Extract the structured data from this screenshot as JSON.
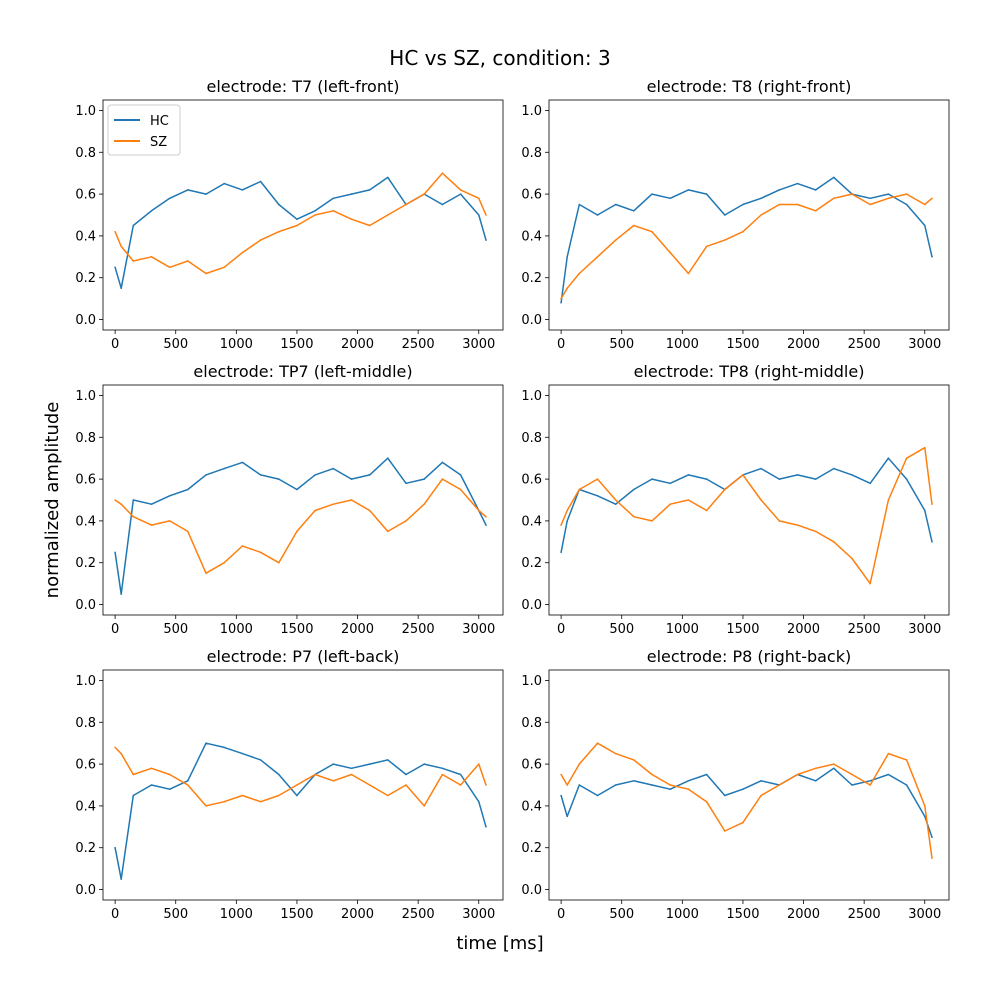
{
  "figure": {
    "title": "HC vs SZ, condition: 3",
    "xlabel": "time [ms]",
    "ylabel": "normalized amplitude",
    "legend": [
      "HC",
      "SZ"
    ],
    "colors": {
      "HC": "#1f77b4",
      "SZ": "#ff7f0e"
    }
  },
  "chart_data": [
    {
      "type": "line",
      "title": "electrode: T7 (left-front)",
      "xlim": [
        -100,
        3200
      ],
      "ylim": [
        -0.05,
        1.05
      ],
      "xticks": [
        0,
        500,
        1000,
        1500,
        2000,
        2500,
        3000
      ],
      "yticks": [
        0.0,
        0.2,
        0.4,
        0.6,
        0.8,
        1.0
      ],
      "legend_position": "upper left",
      "series": [
        {
          "name": "HC",
          "x": [
            0,
            50,
            150,
            300,
            450,
            600,
            750,
            900,
            1050,
            1200,
            1350,
            1500,
            1650,
            1800,
            1950,
            2100,
            2250,
            2400,
            2550,
            2700,
            2850,
            3000,
            3060
          ],
          "values": [
            0.25,
            0.15,
            0.45,
            0.52,
            0.58,
            0.62,
            0.6,
            0.65,
            0.62,
            0.66,
            0.55,
            0.48,
            0.52,
            0.58,
            0.6,
            0.62,
            0.68,
            0.55,
            0.6,
            0.55,
            0.6,
            0.5,
            0.38
          ]
        },
        {
          "name": "SZ",
          "x": [
            0,
            50,
            150,
            300,
            450,
            600,
            750,
            900,
            1050,
            1200,
            1350,
            1500,
            1650,
            1800,
            1950,
            2100,
            2250,
            2400,
            2550,
            2700,
            2850,
            3000,
            3060
          ],
          "values": [
            0.42,
            0.35,
            0.28,
            0.3,
            0.25,
            0.28,
            0.22,
            0.25,
            0.32,
            0.38,
            0.42,
            0.45,
            0.5,
            0.52,
            0.48,
            0.45,
            0.5,
            0.55,
            0.6,
            0.7,
            0.62,
            0.58,
            0.5
          ]
        }
      ]
    },
    {
      "type": "line",
      "title": "electrode: T8 (right-front)",
      "xlim": [
        -100,
        3200
      ],
      "ylim": [
        -0.05,
        1.05
      ],
      "xticks": [
        0,
        500,
        1000,
        1500,
        2000,
        2500,
        3000
      ],
      "yticks": [
        0.0,
        0.2,
        0.4,
        0.6,
        0.8,
        1.0
      ],
      "series": [
        {
          "name": "HC",
          "x": [
            0,
            50,
            150,
            300,
            450,
            600,
            750,
            900,
            1050,
            1200,
            1350,
            1500,
            1650,
            1800,
            1950,
            2100,
            2250,
            2400,
            2550,
            2700,
            2850,
            3000,
            3060
          ],
          "values": [
            0.08,
            0.3,
            0.55,
            0.5,
            0.55,
            0.52,
            0.6,
            0.58,
            0.62,
            0.6,
            0.5,
            0.55,
            0.58,
            0.62,
            0.65,
            0.62,
            0.68,
            0.6,
            0.58,
            0.6,
            0.55,
            0.45,
            0.3
          ]
        },
        {
          "name": "SZ",
          "x": [
            0,
            50,
            150,
            300,
            450,
            600,
            750,
            900,
            1050,
            1200,
            1350,
            1500,
            1650,
            1800,
            1950,
            2100,
            2250,
            2400,
            2550,
            2700,
            2850,
            3000,
            3060
          ],
          "values": [
            0.1,
            0.15,
            0.22,
            0.3,
            0.38,
            0.45,
            0.42,
            0.32,
            0.22,
            0.35,
            0.38,
            0.42,
            0.5,
            0.55,
            0.55,
            0.52,
            0.58,
            0.6,
            0.55,
            0.58,
            0.6,
            0.55,
            0.58
          ]
        }
      ]
    },
    {
      "type": "line",
      "title": "electrode: TP7 (left-middle)",
      "xlim": [
        -100,
        3200
      ],
      "ylim": [
        -0.05,
        1.05
      ],
      "xticks": [
        0,
        500,
        1000,
        1500,
        2000,
        2500,
        3000
      ],
      "yticks": [
        0.0,
        0.2,
        0.4,
        0.6,
        0.8,
        1.0
      ],
      "series": [
        {
          "name": "HC",
          "x": [
            0,
            50,
            150,
            300,
            450,
            600,
            750,
            900,
            1050,
            1200,
            1350,
            1500,
            1650,
            1800,
            1950,
            2100,
            2250,
            2400,
            2550,
            2700,
            2850,
            3000,
            3060
          ],
          "values": [
            0.25,
            0.05,
            0.5,
            0.48,
            0.52,
            0.55,
            0.62,
            0.65,
            0.68,
            0.62,
            0.6,
            0.55,
            0.62,
            0.65,
            0.6,
            0.62,
            0.7,
            0.58,
            0.6,
            0.68,
            0.62,
            0.45,
            0.38
          ]
        },
        {
          "name": "SZ",
          "x": [
            0,
            50,
            150,
            300,
            450,
            600,
            750,
            900,
            1050,
            1200,
            1350,
            1500,
            1650,
            1800,
            1950,
            2100,
            2250,
            2400,
            2550,
            2700,
            2850,
            3000,
            3060
          ],
          "values": [
            0.5,
            0.48,
            0.42,
            0.38,
            0.4,
            0.35,
            0.15,
            0.2,
            0.28,
            0.25,
            0.2,
            0.35,
            0.45,
            0.48,
            0.5,
            0.45,
            0.35,
            0.4,
            0.48,
            0.6,
            0.55,
            0.45,
            0.42
          ]
        }
      ]
    },
    {
      "type": "line",
      "title": "electrode: TP8 (right-middle)",
      "xlim": [
        -100,
        3200
      ],
      "ylim": [
        -0.05,
        1.05
      ],
      "xticks": [
        0,
        500,
        1000,
        1500,
        2000,
        2500,
        3000
      ],
      "yticks": [
        0.0,
        0.2,
        0.4,
        0.6,
        0.8,
        1.0
      ],
      "series": [
        {
          "name": "HC",
          "x": [
            0,
            50,
            150,
            300,
            450,
            600,
            750,
            900,
            1050,
            1200,
            1350,
            1500,
            1650,
            1800,
            1950,
            2100,
            2250,
            2400,
            2550,
            2700,
            2850,
            3000,
            3060
          ],
          "values": [
            0.25,
            0.4,
            0.55,
            0.52,
            0.48,
            0.55,
            0.6,
            0.58,
            0.62,
            0.6,
            0.55,
            0.62,
            0.65,
            0.6,
            0.62,
            0.6,
            0.65,
            0.62,
            0.58,
            0.7,
            0.6,
            0.45,
            0.3
          ]
        },
        {
          "name": "SZ",
          "x": [
            0,
            50,
            150,
            300,
            450,
            600,
            750,
            900,
            1050,
            1200,
            1350,
            1500,
            1650,
            1800,
            1950,
            2100,
            2250,
            2400,
            2550,
            2700,
            2850,
            3000,
            3060
          ],
          "values": [
            0.38,
            0.45,
            0.55,
            0.6,
            0.5,
            0.42,
            0.4,
            0.48,
            0.5,
            0.45,
            0.55,
            0.62,
            0.5,
            0.4,
            0.38,
            0.35,
            0.3,
            0.22,
            0.1,
            0.5,
            0.7,
            0.75,
            0.48
          ]
        }
      ]
    },
    {
      "type": "line",
      "title": "electrode: P7 (left-back)",
      "xlim": [
        -100,
        3200
      ],
      "ylim": [
        -0.05,
        1.05
      ],
      "xticks": [
        0,
        500,
        1000,
        1500,
        2000,
        2500,
        3000
      ],
      "yticks": [
        0.0,
        0.2,
        0.4,
        0.6,
        0.8,
        1.0
      ],
      "series": [
        {
          "name": "HC",
          "x": [
            0,
            50,
            150,
            300,
            450,
            600,
            750,
            900,
            1050,
            1200,
            1350,
            1500,
            1650,
            1800,
            1950,
            2100,
            2250,
            2400,
            2550,
            2700,
            2850,
            3000,
            3060
          ],
          "values": [
            0.2,
            0.05,
            0.45,
            0.5,
            0.48,
            0.52,
            0.7,
            0.68,
            0.65,
            0.62,
            0.55,
            0.45,
            0.55,
            0.6,
            0.58,
            0.6,
            0.62,
            0.55,
            0.6,
            0.58,
            0.55,
            0.42,
            0.3
          ]
        },
        {
          "name": "SZ",
          "x": [
            0,
            50,
            150,
            300,
            450,
            600,
            750,
            900,
            1050,
            1200,
            1350,
            1500,
            1650,
            1800,
            1950,
            2100,
            2250,
            2400,
            2550,
            2700,
            2850,
            3000,
            3060
          ],
          "values": [
            0.68,
            0.65,
            0.55,
            0.58,
            0.55,
            0.5,
            0.4,
            0.42,
            0.45,
            0.42,
            0.45,
            0.5,
            0.55,
            0.52,
            0.55,
            0.5,
            0.45,
            0.5,
            0.4,
            0.55,
            0.5,
            0.6,
            0.5
          ]
        }
      ]
    },
    {
      "type": "line",
      "title": "electrode: P8 (right-back)",
      "xlim": [
        -100,
        3200
      ],
      "ylim": [
        -0.05,
        1.05
      ],
      "xticks": [
        0,
        500,
        1000,
        1500,
        2000,
        2500,
        3000
      ],
      "yticks": [
        0.0,
        0.2,
        0.4,
        0.6,
        0.8,
        1.0
      ],
      "series": [
        {
          "name": "HC",
          "x": [
            0,
            50,
            150,
            300,
            450,
            600,
            750,
            900,
            1050,
            1200,
            1350,
            1500,
            1650,
            1800,
            1950,
            2100,
            2250,
            2400,
            2550,
            2700,
            2850,
            3000,
            3060
          ],
          "values": [
            0.45,
            0.35,
            0.5,
            0.45,
            0.5,
            0.52,
            0.5,
            0.48,
            0.52,
            0.55,
            0.45,
            0.48,
            0.52,
            0.5,
            0.55,
            0.52,
            0.58,
            0.5,
            0.52,
            0.55,
            0.5,
            0.35,
            0.25
          ]
        },
        {
          "name": "SZ",
          "x": [
            0,
            50,
            150,
            300,
            450,
            600,
            750,
            900,
            1050,
            1200,
            1350,
            1500,
            1650,
            1800,
            1950,
            2100,
            2250,
            2400,
            2550,
            2700,
            2850,
            3000,
            3060
          ],
          "values": [
            0.55,
            0.5,
            0.6,
            0.7,
            0.65,
            0.62,
            0.55,
            0.5,
            0.48,
            0.42,
            0.28,
            0.32,
            0.45,
            0.5,
            0.55,
            0.58,
            0.6,
            0.55,
            0.5,
            0.65,
            0.62,
            0.4,
            0.15
          ]
        }
      ]
    }
  ]
}
